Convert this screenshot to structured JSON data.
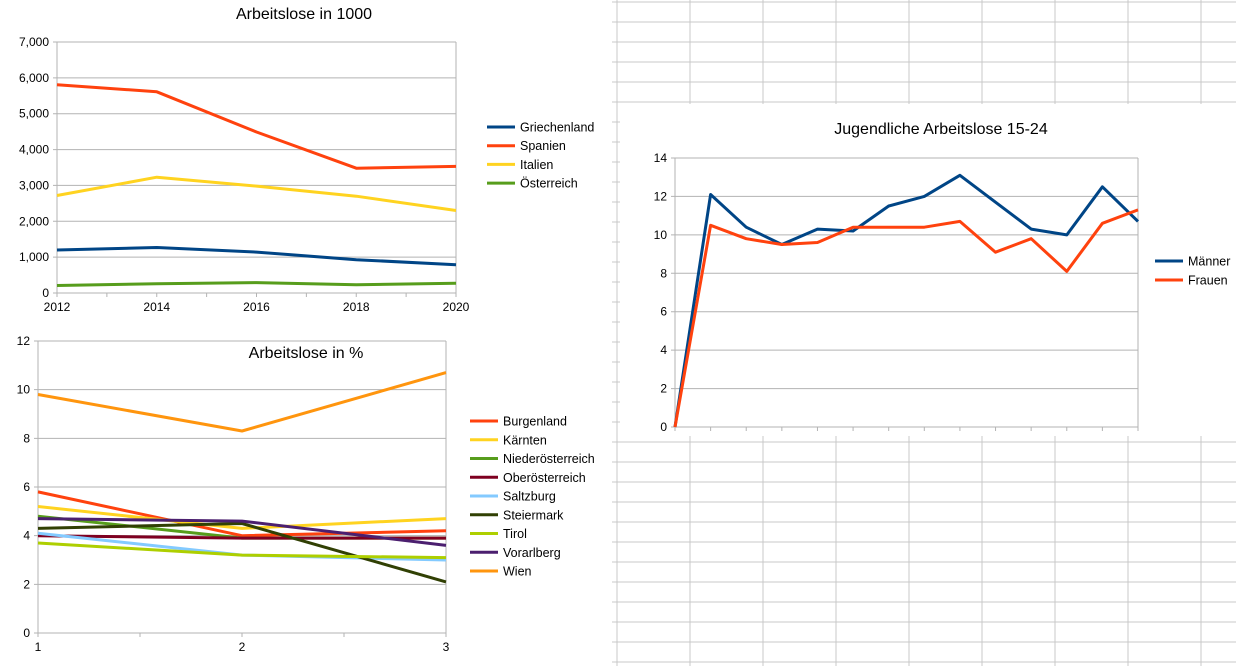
{
  "colors": {
    "Griechenland": "#004586",
    "Spanien": "#ff420e",
    "Italien": "#ffd320",
    "Österreich": "#579d1c",
    "Burgenland": "#ff420e",
    "Kärnten": "#ffd320",
    "Niederösterreich": "#579d1c",
    "Oberösterreich": "#7e0021",
    "Saltzburg": "#83caff",
    "Steiermark": "#314004",
    "Tirol": "#aecf00",
    "Vorarlberg": "#4b1f6f",
    "Wien": "#ff950e",
    "Männer": "#004586",
    "Frauen": "#ff420e",
    "grid": "#b3b3b3"
  },
  "chart_data": [
    {
      "type": "line",
      "title": "Arbeitslose in 1000",
      "x": [
        2012,
        2014,
        2016,
        2018,
        2020
      ],
      "xticks": [
        "2012",
        "2014",
        "2016",
        "2018",
        "2020"
      ],
      "yticks": [
        "0",
        "1,000",
        "2,000",
        "3,000",
        "4,000",
        "5,000",
        "6,000",
        "7,000"
      ],
      "ylim": [
        0,
        7000
      ],
      "grid": true,
      "legend_position": "right",
      "series": [
        {
          "name": "Griechenland",
          "values": [
            1200,
            1270,
            1140,
            930,
            790
          ]
        },
        {
          "name": "Spanien",
          "values": [
            5810,
            5610,
            4490,
            3480,
            3530
          ]
        },
        {
          "name": "Italien",
          "values": [
            2720,
            3230,
            2980,
            2700,
            2300
          ]
        },
        {
          "name": "Österreich",
          "values": [
            210,
            260,
            290,
            230,
            270
          ]
        }
      ]
    },
    {
      "type": "line",
      "title": "Arbeitslose in %",
      "x": [
        1,
        2,
        3
      ],
      "xticks": [
        "1",
        "2",
        "3"
      ],
      "yticks": [
        "0",
        "2",
        "4",
        "6",
        "8",
        "10",
        "12"
      ],
      "ylim": [
        0,
        12
      ],
      "grid": true,
      "legend_position": "right",
      "series": [
        {
          "name": "Burgenland",
          "values": [
            5.8,
            4.0,
            4.2
          ]
        },
        {
          "name": "Kärnten",
          "values": [
            5.2,
            4.3,
            4.7
          ]
        },
        {
          "name": "Niederösterreich",
          "values": [
            4.8,
            3.9,
            3.9
          ]
        },
        {
          "name": "Oberösterreich",
          "values": [
            4.0,
            3.9,
            3.9
          ]
        },
        {
          "name": "Saltzburg",
          "values": [
            4.1,
            3.2,
            3.0
          ]
        },
        {
          "name": "Steiermark",
          "values": [
            4.3,
            4.5,
            2.1
          ]
        },
        {
          "name": "Tirol",
          "values": [
            3.7,
            3.2,
            3.1
          ]
        },
        {
          "name": "Vorarlberg",
          "values": [
            4.7,
            4.6,
            3.6
          ]
        },
        {
          "name": "Wien",
          "values": [
            9.8,
            8.3,
            10.7
          ]
        }
      ]
    },
    {
      "type": "line",
      "title": "Jugendliche Arbeitslose 15-24",
      "x": [
        1,
        2,
        3,
        4,
        5,
        6,
        7,
        8,
        9,
        10,
        11,
        12,
        13,
        14
      ],
      "yticks": [
        "0",
        "2",
        "4",
        "6",
        "8",
        "10",
        "12",
        "14"
      ],
      "ylim": [
        0,
        14
      ],
      "grid": true,
      "legend_position": "right",
      "series": [
        {
          "name": "Männer",
          "values": [
            0,
            12.1,
            10.4,
            9.5,
            10.3,
            10.2,
            11.5,
            12.0,
            13.1,
            11.7,
            10.3,
            10.0,
            12.5,
            10.7
          ]
        },
        {
          "name": "Frauen",
          "values": [
            0,
            10.5,
            9.8,
            9.5,
            9.6,
            10.4,
            10.4,
            10.4,
            10.7,
            9.1,
            9.8,
            8.1,
            10.6,
            11.3
          ]
        }
      ]
    }
  ]
}
